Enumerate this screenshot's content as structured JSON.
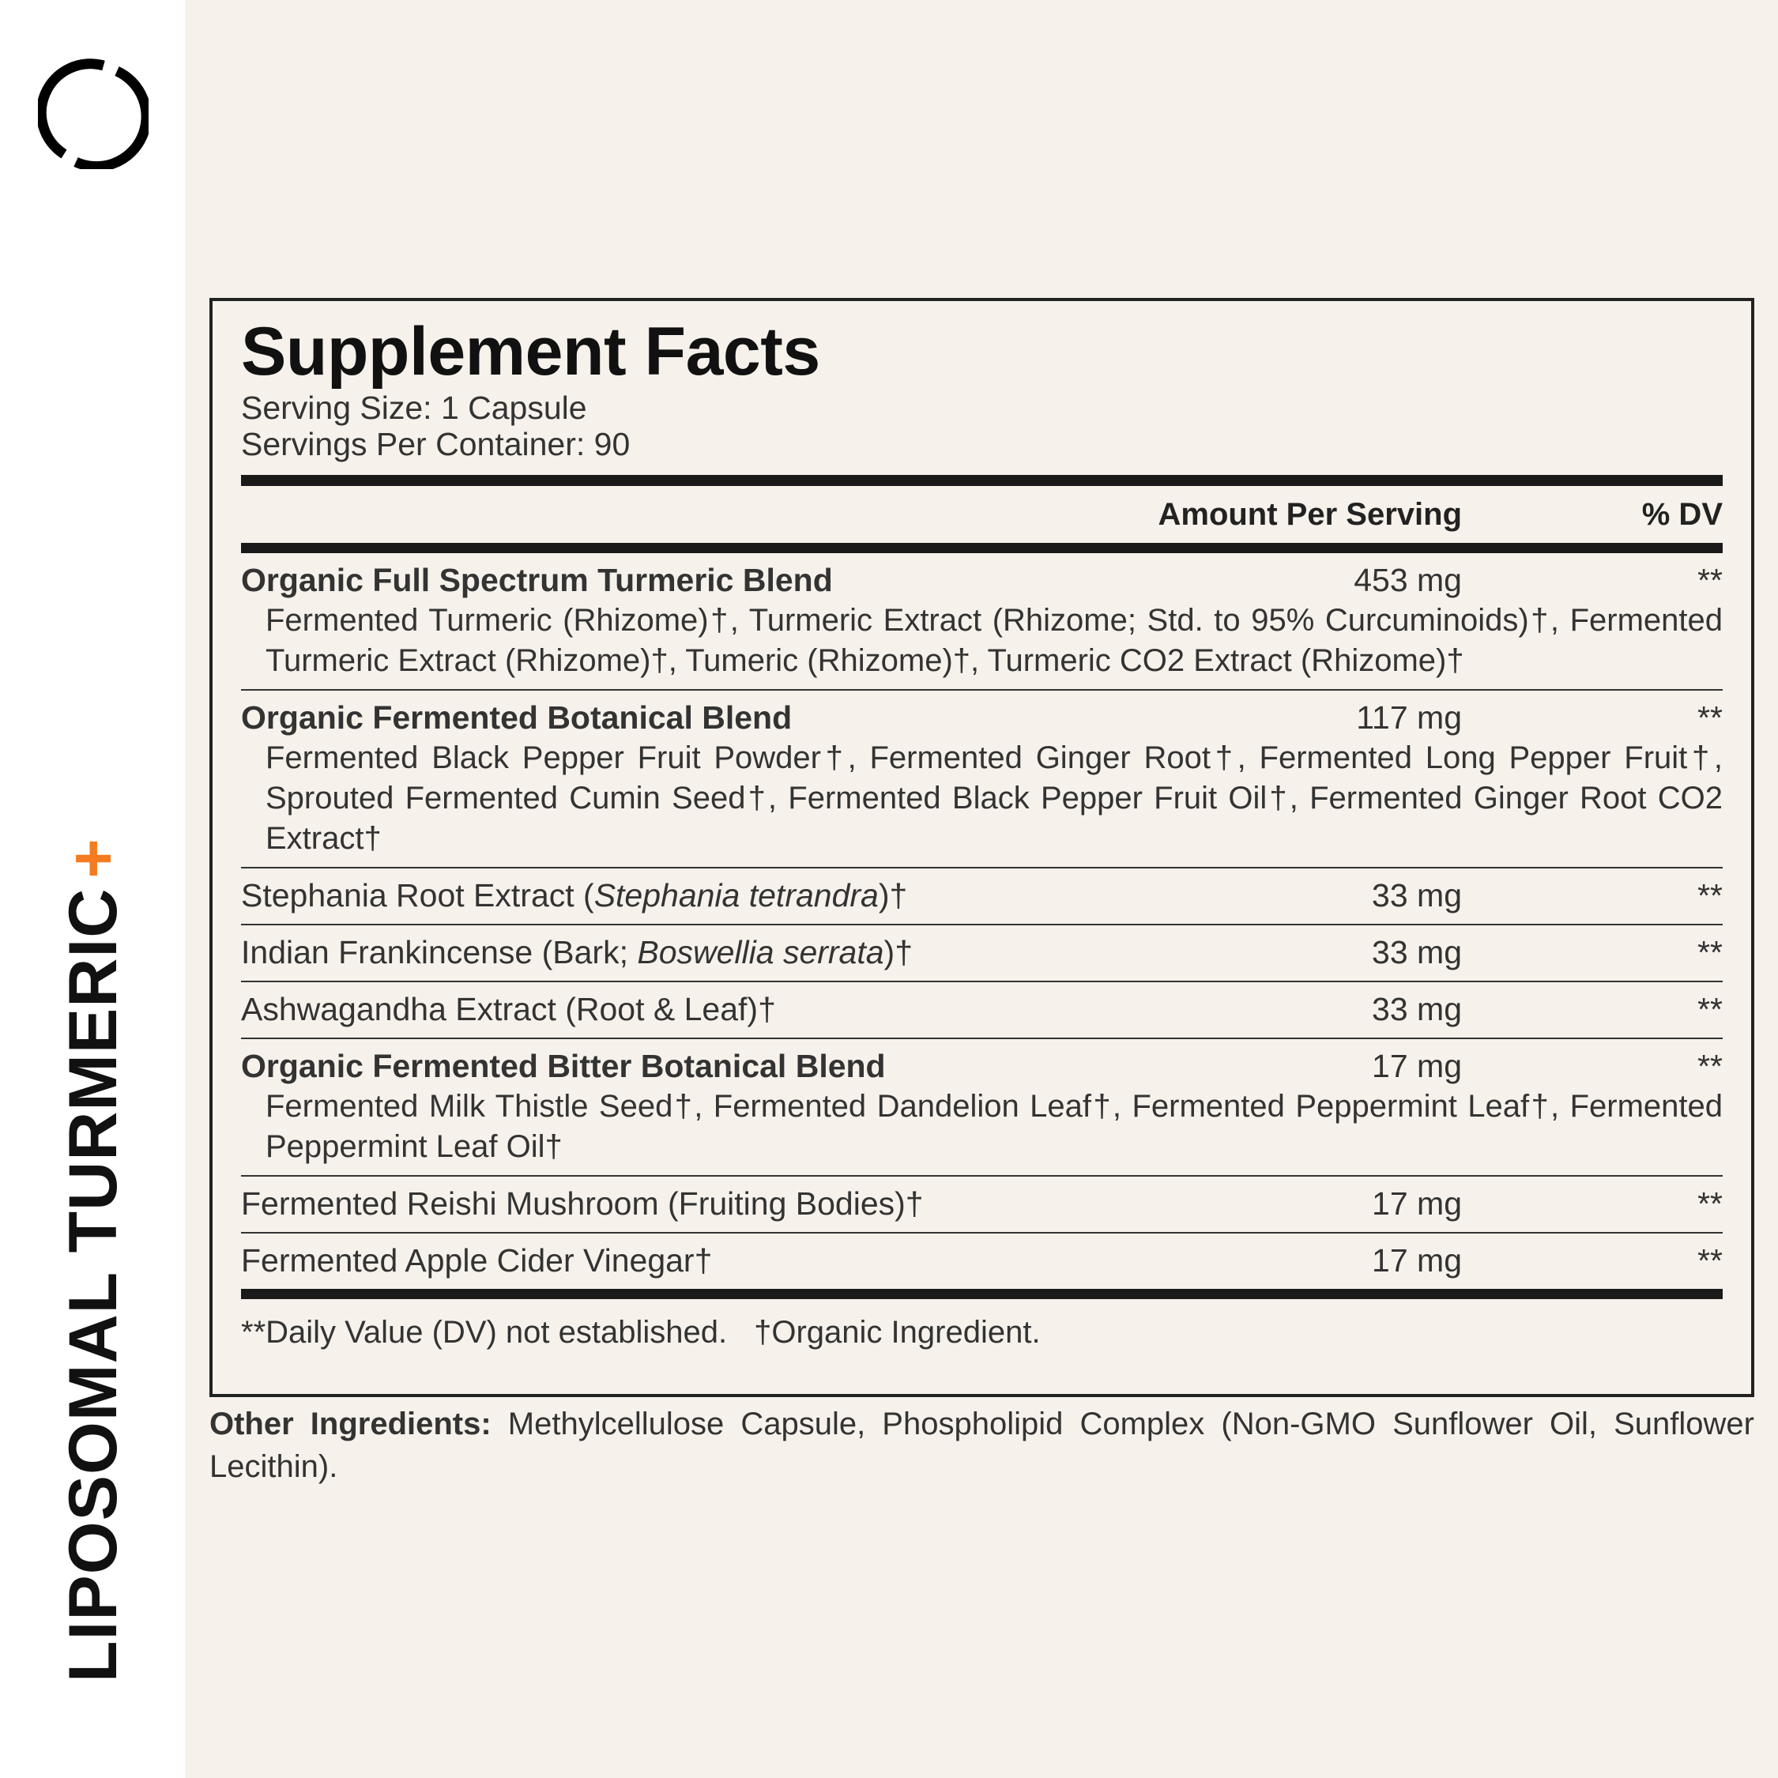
{
  "brand": {
    "logo": "circle-logo",
    "product": "LIPOSOMAL TURMERIC",
    "plus": "+",
    "accent": "#f47b20"
  },
  "facts": {
    "title": "Supplement Facts",
    "serving_size": "Serving Size: 1 Capsule",
    "servings_per_container": "Servings Per Container: 90",
    "col_amount": "Amount Per Serving",
    "col_dv": "% DV",
    "rows": [
      {
        "name": "Organic Full Spectrum Turmeric Blend",
        "amount": "453 mg",
        "dv": "**",
        "sub": "Fermented Turmeric (Rhizome)†, Turmeric Extract (Rhizome; Std. to 95% Curcuminoids)†, Fermented Turmeric Extract (Rhizome)†, Tumeric (Rhizome)†, Turmeric CO2 Extract (Rhizome)†"
      },
      {
        "name": "Organic Fermented Botanical Blend",
        "amount": "117 mg",
        "dv": "**",
        "sub": "Fermented Black Pepper Fruit Powder†, Fermented Ginger Root†, Fermented Long Pepper Fruit†, Sprouted Fermented Cumin Seed†, Fermented Black Pepper Fruit Oil†, Fermented Ginger Root CO2 Extract†"
      },
      {
        "name": "Stephania Root Extract (",
        "italic": "Stephania tetrandra",
        "suffix": ")†",
        "amount": "33 mg",
        "dv": "**"
      },
      {
        "name": "Indian Frankincense (Bark; ",
        "italic": "Boswellia serrata",
        "suffix": ")†",
        "amount": "33 mg",
        "dv": "**"
      },
      {
        "name": "Ashwagandha Extract (Root & Leaf)†",
        "amount": "33 mg",
        "dv": "**"
      },
      {
        "name": "Organic Fermented Bitter Botanical Blend",
        "amount": "17 mg",
        "dv": "**",
        "sub": "Fermented Milk Thistle Seed†, Fermented Dandelion Leaf†, Fermented Peppermint Leaf†, Fermented Peppermint Leaf Oil†"
      },
      {
        "name": "Fermented Reishi Mushroom (Fruiting Bodies)†",
        "amount": "17 mg",
        "dv": "**"
      },
      {
        "name": "Fermented Apple Cider Vinegar†",
        "amount": "17 mg",
        "dv": "**"
      }
    ],
    "footnote_dv": "**Daily Value (DV) not established.",
    "footnote_organic": "†Organic Ingredient."
  },
  "other_ingredients": {
    "label": "Other Ingredients:",
    "text": " Methylcellulose Capsule, Phospholipid Complex (Non-GMO Sunflower Oil, Sunflower Lecithin)."
  }
}
